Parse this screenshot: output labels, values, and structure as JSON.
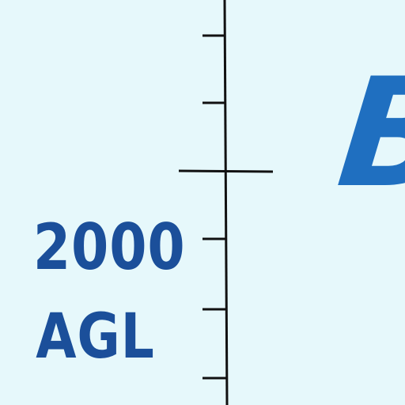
{
  "altitude_scale": {
    "value_label": "2000",
    "unit_label": "AGL",
    "line_color": "#111111",
    "label_color": "#1b4f9a"
  },
  "airspace": {
    "class_letter": "B",
    "letter_color": "#1f6fc0"
  },
  "background_color": "#e6f8fb"
}
